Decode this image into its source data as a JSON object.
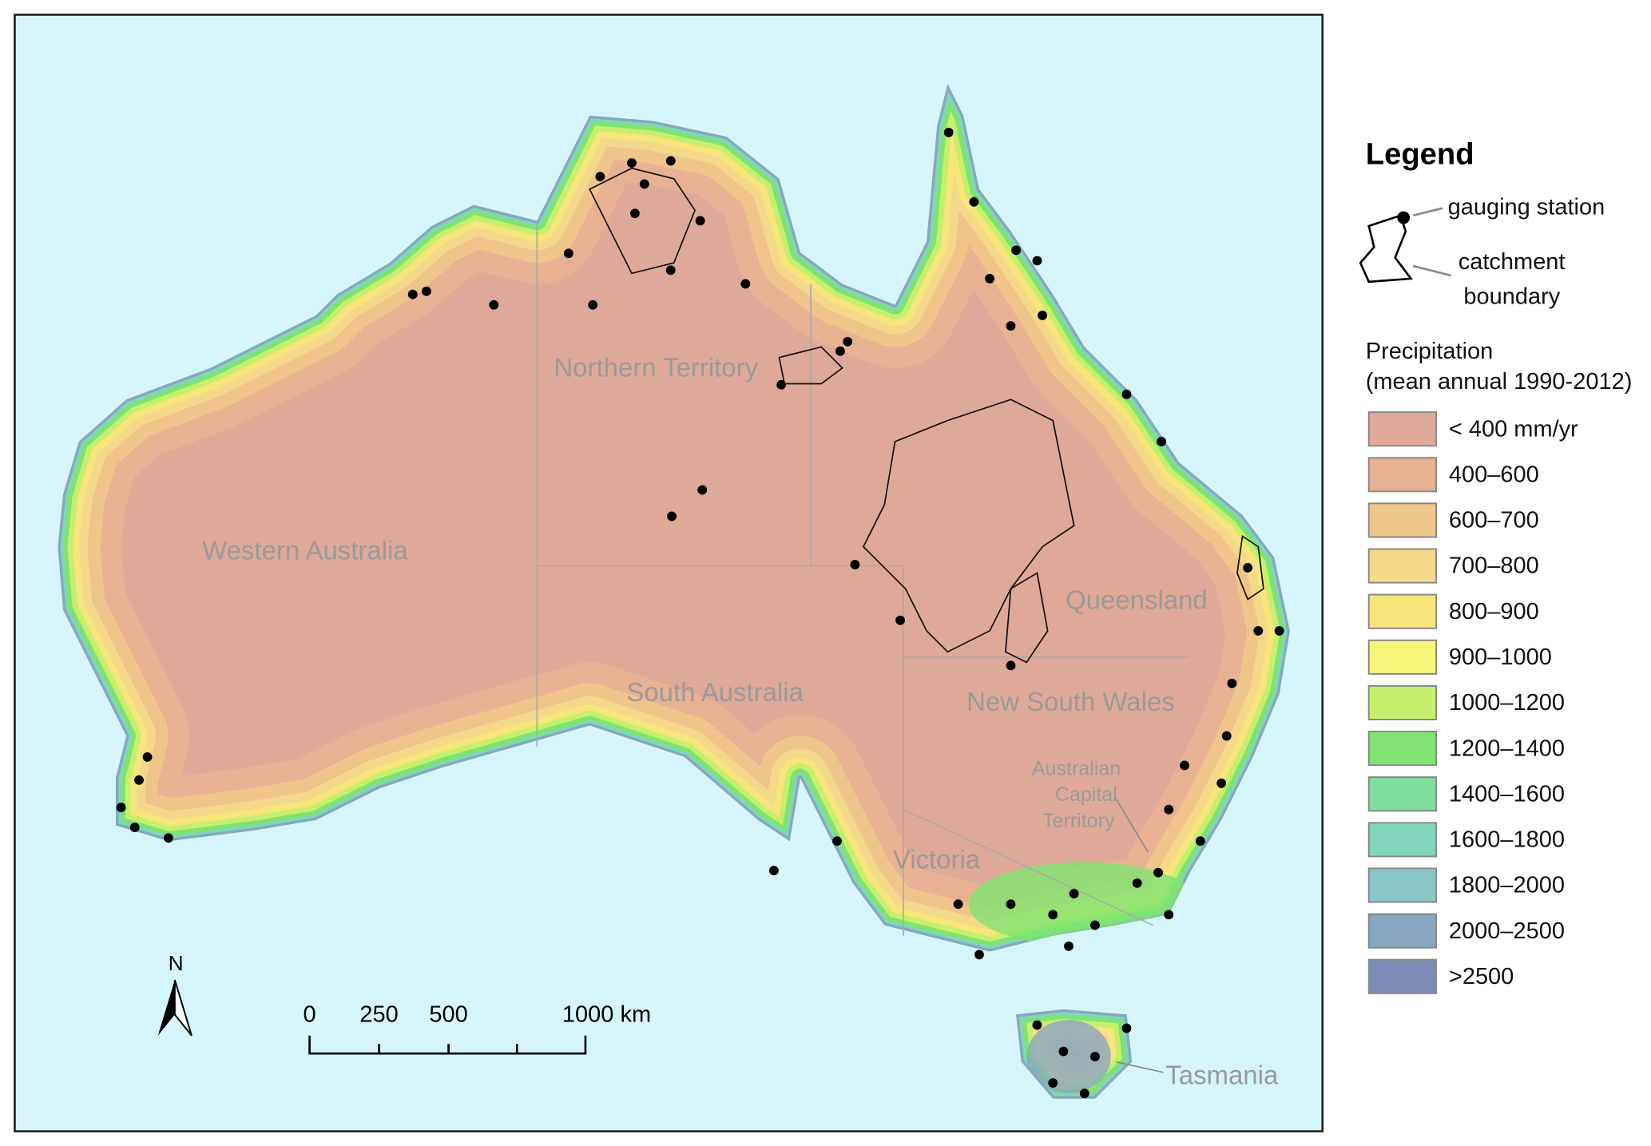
{
  "map": {
    "states": [
      "Northern Territory",
      "Western Australia",
      "Queensland",
      "South Australia",
      "New South Wales",
      "Australian",
      "Capital",
      "Territory",
      "Victoria",
      "Tasmania"
    ],
    "scale_bar": {
      "labels": [
        "0",
        "250",
        "500",
        "1000 km"
      ]
    },
    "north": "N"
  },
  "legend": {
    "title": "Legend",
    "station": "gauging station",
    "catchment_1": "catchment",
    "catchment_2": "boundary",
    "precip_title": "Precipitation",
    "precip_subtitle": "(mean annual 1990-2012)",
    "classes": [
      {
        "label": "< 400 mm/yr",
        "color": "#dfa99a"
      },
      {
        "label": "400–600",
        "color": "#e8b292"
      },
      {
        "label": "600–700",
        "color": "#efc58a"
      },
      {
        "label": "700–800",
        "color": "#f5d98a"
      },
      {
        "label": "800–900",
        "color": "#f8e57c"
      },
      {
        "label": "900–1000",
        "color": "#f6f67a"
      },
      {
        "label": "1000–1200",
        "color": "#c7ef6e"
      },
      {
        "label": "1200–1400",
        "color": "#7ee36f"
      },
      {
        "label": "1400–1600",
        "color": "#7fdd9e"
      },
      {
        "label": "1600–1800",
        "color": "#7fd6bd"
      },
      {
        "label": "1800–2000",
        "color": "#89c6c8"
      },
      {
        "label": "2000–2500",
        "color": "#88a7c0"
      },
      {
        "label": ">2500",
        "color": "#7b8bb5"
      }
    ]
  }
}
